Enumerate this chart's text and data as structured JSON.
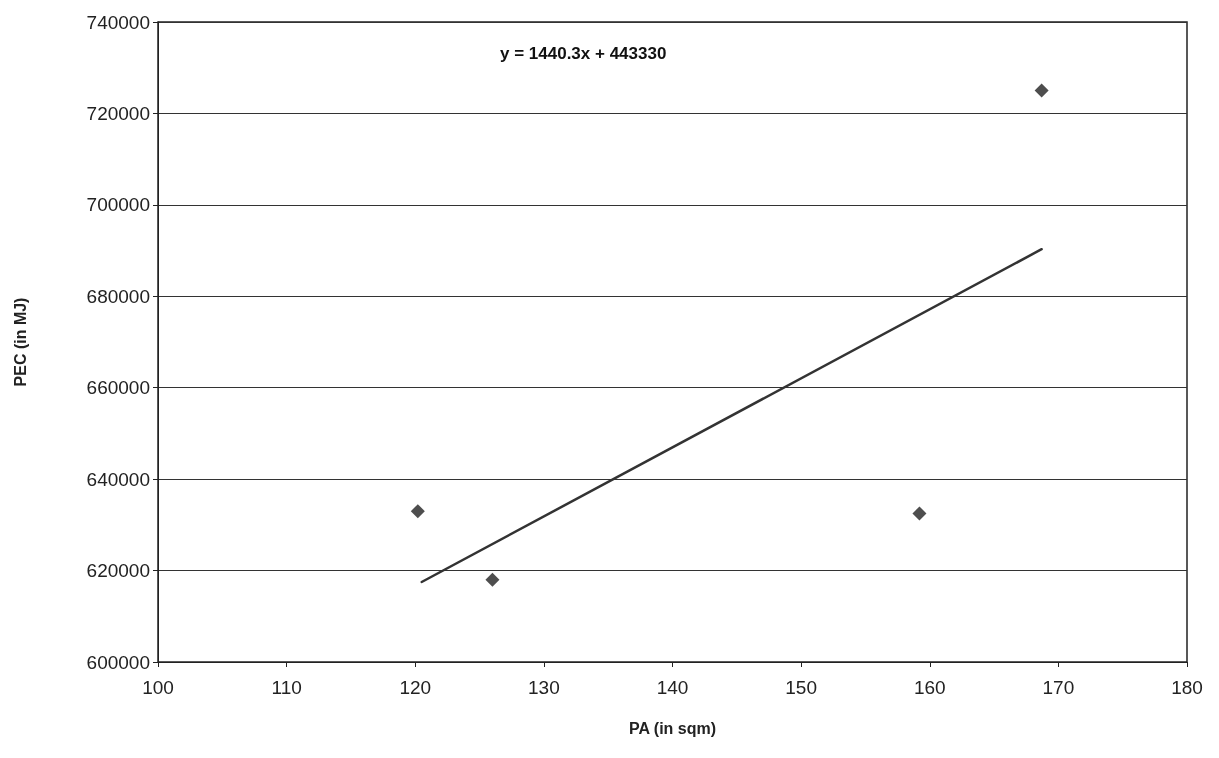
{
  "chart_data": {
    "type": "scatter",
    "xlabel": "PA (in sqm)",
    "ylabel": "PEC (in MJ)",
    "annotations": [
      "y = 1440.3x + 443330"
    ],
    "xlim": [
      100,
      180
    ],
    "xticks": [
      100,
      110,
      120,
      130,
      140,
      150,
      160,
      170,
      180
    ],
    "ylim": [
      600000,
      740000
    ],
    "yticks": [
      600000,
      620000,
      640000,
      660000,
      680000,
      700000,
      720000,
      740000
    ],
    "grid": "y",
    "series": [
      {
        "marker": "diamond",
        "color": "#222222",
        "x": [
          120.2,
          126,
          159.2,
          168.7
        ],
        "values": [
          633000,
          618000,
          632500,
          725000
        ]
      },
      {
        "type": "line",
        "marker": "none",
        "line_style": "solid",
        "color": "#333333",
        "x": [
          120.5,
          168.7
        ],
        "values": [
          617500,
          690300
        ]
      }
    ]
  }
}
